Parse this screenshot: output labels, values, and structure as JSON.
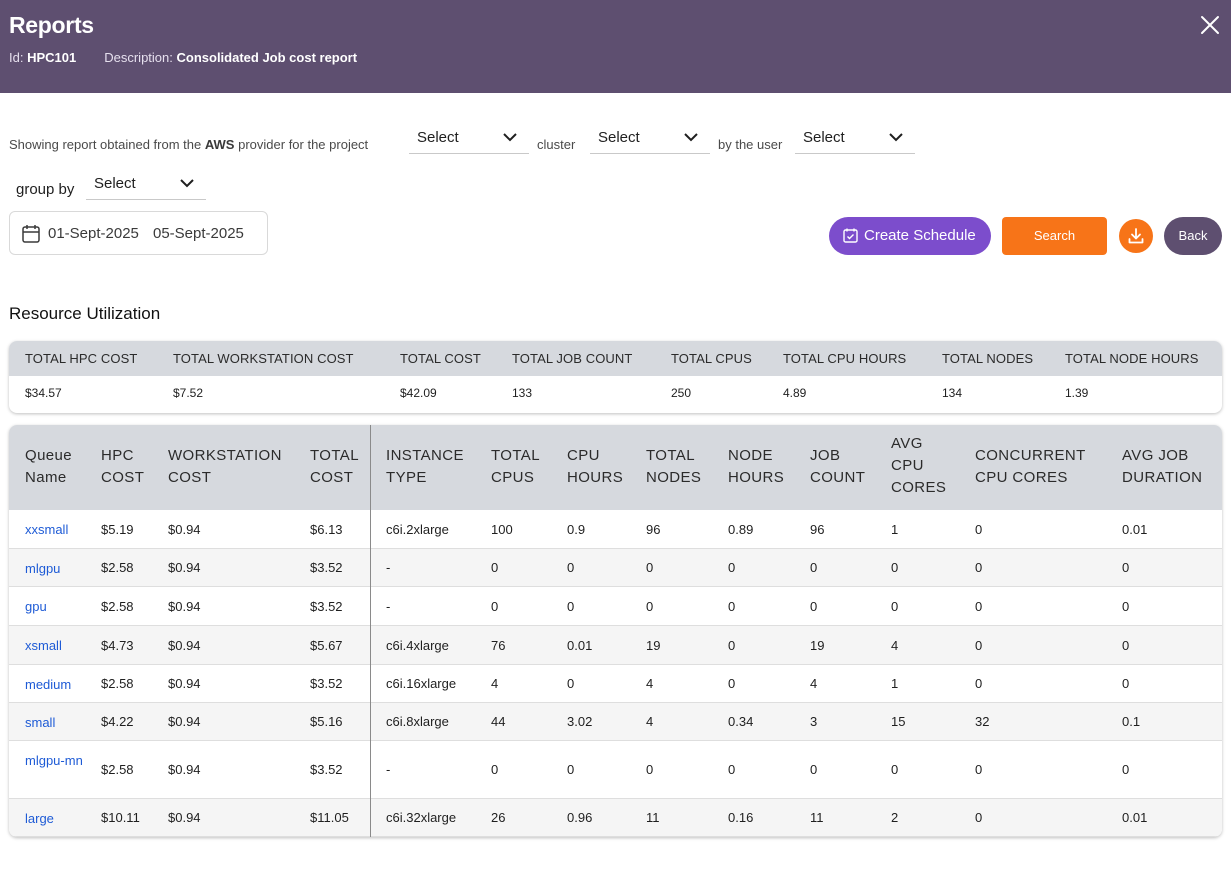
{
  "header": {
    "title": "Reports",
    "id_label": "Id:",
    "id_value": "HPC101",
    "desc_label": "Description:",
    "desc_value": "Consolidated Job cost report"
  },
  "filters": {
    "text1": "Showing report obtained from the",
    "provider": "AWS",
    "text2": "provider for the project",
    "project_select": "Select",
    "text3": "cluster",
    "cluster_select": "Select",
    "text4": "by the user",
    "user_select": "Select",
    "group_by_label": "group by",
    "group_by_select": "Select"
  },
  "date_range": {
    "start": "01-Sept-2025",
    "end": "05-Sept-2025"
  },
  "buttons": {
    "create_schedule": "Create Schedule",
    "search": "Search",
    "back": "Back"
  },
  "section_title": "Resource Utilization",
  "summary": {
    "headers": [
      "TOTAL HPC COST",
      "TOTAL WORKSTATION COST",
      "TOTAL COST",
      "TOTAL JOB COUNT",
      "TOTAL CPUS",
      "TOTAL CPU HOURS",
      "TOTAL NODES",
      "TOTAL NODE HOURS"
    ],
    "values": [
      "$34.57",
      "$7.52",
      "$42.09",
      "133",
      "250",
      "4.89",
      "134",
      "1.39"
    ]
  },
  "table": {
    "headers": [
      [
        "Queue",
        "Name"
      ],
      [
        "HPC",
        "COST"
      ],
      [
        "WORKSTATION",
        "COST"
      ],
      [
        "TOTAL",
        "COST"
      ],
      [
        "INSTANCE",
        "TYPE"
      ],
      [
        "TOTAL",
        "CPUS"
      ],
      [
        "CPU",
        "HOURS"
      ],
      [
        "TOTAL",
        "NODES"
      ],
      [
        "NODE",
        "HOURS"
      ],
      [
        "JOB",
        "COUNT"
      ],
      [
        "AVG",
        "CPU",
        "CORES"
      ],
      [
        "CONCURRENT",
        "CPU CORES"
      ],
      [
        "AVG JOB",
        "DURATION"
      ]
    ],
    "rows": [
      [
        "xxsmall",
        "$5.19",
        "$0.94",
        "$6.13",
        "c6i.2xlarge",
        "100",
        "0.9",
        "96",
        "0.89",
        "96",
        "1",
        "0",
        "0.01"
      ],
      [
        "mlgpu",
        "$2.58",
        "$0.94",
        "$3.52",
        "-",
        "0",
        "0",
        "0",
        "0",
        "0",
        "0",
        "0",
        "0"
      ],
      [
        "gpu",
        "$2.58",
        "$0.94",
        "$3.52",
        "-",
        "0",
        "0",
        "0",
        "0",
        "0",
        "0",
        "0",
        "0"
      ],
      [
        "xsmall",
        "$4.73",
        "$0.94",
        "$5.67",
        "c6i.4xlarge",
        "76",
        "0.01",
        "19",
        "0",
        "19",
        "4",
        "0",
        "0"
      ],
      [
        "medium",
        "$2.58",
        "$0.94",
        "$3.52",
        "c6i.16xlarge",
        "4",
        "0",
        "4",
        "0",
        "4",
        "1",
        "0",
        "0"
      ],
      [
        "small",
        "$4.22",
        "$0.94",
        "$5.16",
        "c6i.8xlarge",
        "44",
        "3.02",
        "4",
        "0.34",
        "3",
        "15",
        "32",
        "0.1"
      ],
      [
        "mlgpu-mn",
        "$2.58",
        "$0.94",
        "$3.52",
        "-",
        "0",
        "0",
        "0",
        "0",
        "0",
        "0",
        "0",
        "0"
      ],
      [
        "large",
        "$10.11",
        "$0.94",
        "$11.05",
        "c6i.32xlarge",
        "26",
        "0.96",
        "11",
        "0.16",
        "11",
        "2",
        "0",
        "0.01"
      ]
    ]
  },
  "colors": {
    "header_bg": "#5e4f70",
    "schedule_button": "#7c4dcc",
    "search_button": "#f77418",
    "link": "#1e5bd6"
  }
}
